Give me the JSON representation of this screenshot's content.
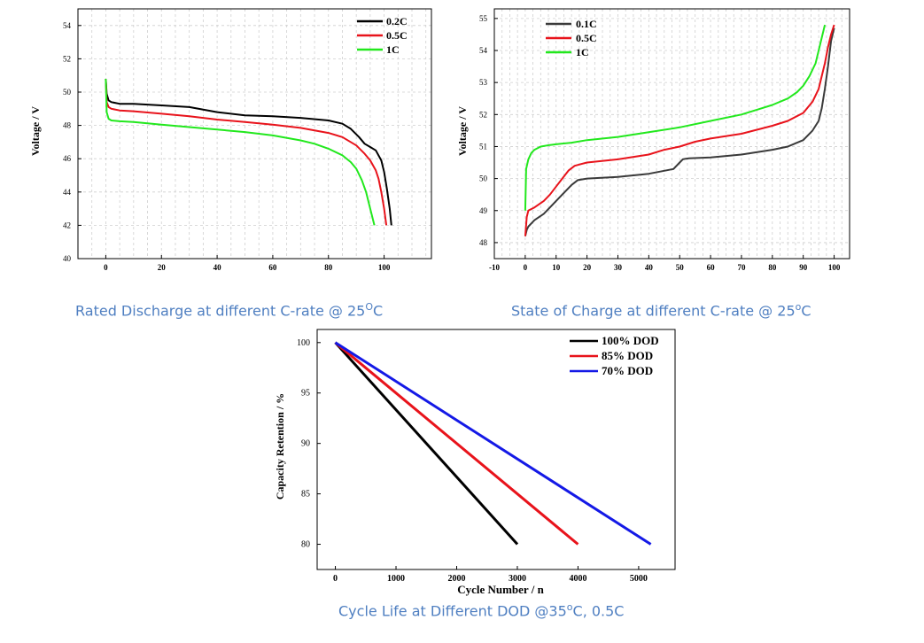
{
  "captions": {
    "discharge_main": "Rated Discharge at different C-rate @ 25",
    "discharge_sup": "O",
    "discharge_unit": "C",
    "soc_main": "State of Charge at different C-rate @ 25",
    "soc_sup": "o",
    "soc_unit": "C",
    "cycle_main": "Cycle Life at Different DOD @35",
    "cycle_sup": "o",
    "cycle_unit": "C, 0.5C"
  },
  "colors": {
    "black": "#000000",
    "red": "#e8131b",
    "green": "#22e81d",
    "blue": "#1419e6",
    "grey": "#3a3a3a"
  },
  "chart_data": [
    {
      "id": "discharge",
      "type": "line",
      "title": "Rated Discharge at different C-rate @ 25°C",
      "xlabel": "",
      "ylabel": "Voltage / V",
      "xlim": [
        -10,
        117
      ],
      "ylim": [
        40,
        55
      ],
      "xticks": [
        0,
        20,
        40,
        60,
        80,
        100
      ],
      "yticks": [
        40,
        42,
        44,
        46,
        48,
        50,
        52,
        54
      ],
      "grid": true,
      "legend_position": "top-right",
      "series": [
        {
          "name": "0.2C",
          "color": "#000000",
          "x": [
            0,
            0.3,
            1,
            2,
            5,
            10,
            20,
            30,
            40,
            50,
            60,
            70,
            80,
            85,
            88,
            91,
            93,
            95,
            97,
            99,
            100,
            101,
            102,
            102.6
          ],
          "y": [
            50.8,
            49.9,
            49.5,
            49.4,
            49.3,
            49.3,
            49.2,
            49.1,
            48.8,
            48.6,
            48.55,
            48.45,
            48.3,
            48.1,
            47.8,
            47.3,
            46.9,
            46.7,
            46.5,
            45.9,
            45.2,
            44.2,
            43.0,
            42.0
          ]
        },
        {
          "name": "0.5C",
          "color": "#e8131b",
          "x": [
            0,
            0.3,
            1,
            2,
            5,
            10,
            20,
            30,
            40,
            50,
            60,
            70,
            80,
            85,
            90,
            93,
            95,
            97,
            98,
            99,
            100,
            100.8
          ],
          "y": [
            50.8,
            49.4,
            49.1,
            49.0,
            48.9,
            48.85,
            48.7,
            48.55,
            48.35,
            48.2,
            48.05,
            47.85,
            47.55,
            47.3,
            46.8,
            46.3,
            45.9,
            45.3,
            44.8,
            44.0,
            43.0,
            42.0
          ]
        },
        {
          "name": "1C",
          "color": "#22e81d",
          "x": [
            0,
            0.3,
            1,
            2,
            5,
            10,
            20,
            30,
            40,
            50,
            60,
            70,
            75,
            80,
            85,
            88,
            90,
            92,
            93.5,
            95,
            96.5
          ],
          "y": [
            50.8,
            48.8,
            48.4,
            48.3,
            48.25,
            48.2,
            48.05,
            47.9,
            47.75,
            47.6,
            47.4,
            47.1,
            46.9,
            46.6,
            46.2,
            45.8,
            45.4,
            44.7,
            44.0,
            43.0,
            42.0
          ]
        }
      ]
    },
    {
      "id": "soc",
      "type": "line",
      "title": "State of Charge at different C-rate @ 25°C",
      "xlabel": "",
      "ylabel": "Voltage / V",
      "xlim": [
        -10,
        105
      ],
      "ylim": [
        47.5,
        55.3
      ],
      "xticks": [
        -10,
        0,
        10,
        20,
        30,
        40,
        50,
        60,
        70,
        80,
        90,
        100
      ],
      "yticks": [
        48,
        49,
        50,
        51,
        52,
        53,
        54,
        55
      ],
      "grid": true,
      "legend_position": "top-center",
      "series": [
        {
          "name": "0.1C",
          "color": "#3a3a3a",
          "x": [
            0,
            0.5,
            1,
            3,
            6,
            8,
            10,
            13,
            15,
            17,
            20,
            30,
            40,
            48,
            50,
            51,
            52,
            53,
            60,
            70,
            80,
            85,
            90,
            93,
            95,
            96,
            97,
            98,
            99,
            100
          ],
          "y": [
            48.2,
            48.4,
            48.5,
            48.7,
            48.9,
            49.1,
            49.3,
            49.6,
            49.8,
            49.95,
            50.0,
            50.05,
            50.15,
            50.3,
            50.5,
            50.6,
            50.62,
            50.63,
            50.66,
            50.75,
            50.9,
            51.0,
            51.2,
            51.5,
            51.8,
            52.2,
            52.8,
            53.5,
            54.3,
            54.7
          ]
        },
        {
          "name": "0.5C",
          "color": "#e8131b",
          "x": [
            0,
            0.5,
            1,
            3,
            6,
            8,
            10,
            12,
            14,
            16,
            18,
            20,
            30,
            40,
            45,
            50,
            55,
            60,
            70,
            80,
            85,
            90,
            93,
            95,
            96,
            97,
            98,
            99,
            100
          ],
          "y": [
            48.2,
            48.8,
            49.0,
            49.1,
            49.3,
            49.5,
            49.75,
            50.0,
            50.25,
            50.4,
            50.45,
            50.5,
            50.6,
            50.75,
            50.9,
            51.0,
            51.15,
            51.25,
            51.4,
            51.65,
            51.8,
            52.05,
            52.4,
            52.8,
            53.2,
            53.6,
            54.1,
            54.5,
            54.8
          ]
        },
        {
          "name": "1C",
          "color": "#22e81d",
          "x": [
            0,
            0.3,
            1,
            2,
            3,
            5,
            8,
            10,
            15,
            20,
            30,
            40,
            50,
            60,
            70,
            75,
            80,
            85,
            88,
            90,
            92,
            94,
            95,
            96,
            97
          ],
          "y": [
            49.0,
            50.3,
            50.6,
            50.8,
            50.9,
            51.0,
            51.05,
            51.07,
            51.12,
            51.2,
            51.3,
            51.45,
            51.6,
            51.8,
            52.0,
            52.15,
            52.3,
            52.5,
            52.7,
            52.9,
            53.2,
            53.6,
            54.0,
            54.4,
            54.8
          ]
        }
      ]
    },
    {
      "id": "cycle",
      "type": "line",
      "title": "Cycle Life at Different DOD @35°C, 0.5C",
      "xlabel": "Cycle Number / n",
      "ylabel": "Capacity Retention / %",
      "xlim": [
        -300,
        5600
      ],
      "ylim": [
        77.5,
        101.3
      ],
      "xticks": [
        0,
        1000,
        2000,
        3000,
        4000,
        5000
      ],
      "yticks": [
        80,
        85,
        90,
        95,
        100
      ],
      "grid": false,
      "legend_position": "top-right",
      "series": [
        {
          "name": "100% DOD",
          "color": "#000000",
          "x": [
            0,
            3000
          ],
          "y": [
            100,
            80
          ]
        },
        {
          "name": "85% DOD",
          "color": "#e8131b",
          "x": [
            0,
            4000
          ],
          "y": [
            100,
            80
          ]
        },
        {
          "name": "70% DOD",
          "color": "#1419e6",
          "x": [
            0,
            5200
          ],
          "y": [
            100,
            80
          ]
        }
      ]
    }
  ]
}
